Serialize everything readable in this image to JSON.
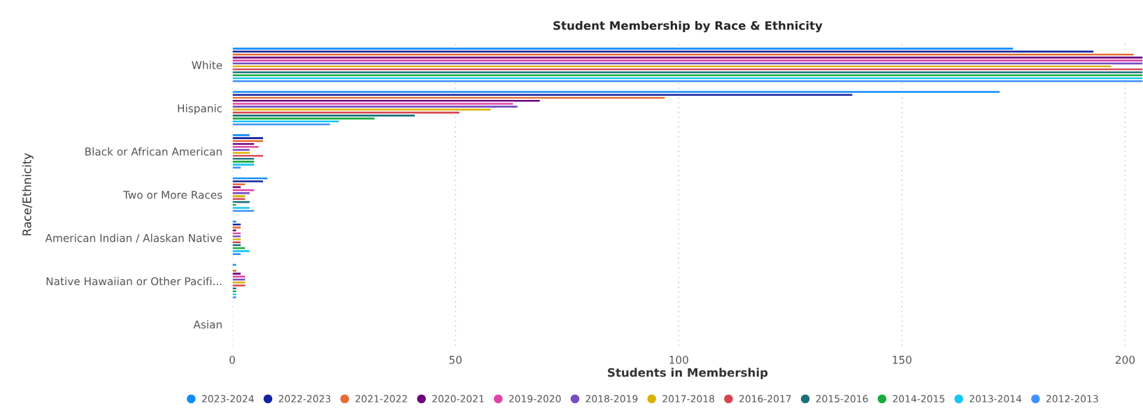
{
  "chart_data": {
    "type": "bar",
    "orientation": "horizontal",
    "title": "Student Membership by Race & Ethnicity",
    "xlabel": "Students in Membership",
    "ylabel": "Race/Ethnicity",
    "categories": [
      "White",
      "Hispanic",
      "Black or African American",
      "Two or More Races",
      "American Indian / Alaskan Native",
      "Native Hawaiian or Other Pacifi...",
      "Asian"
    ],
    "series": [
      {
        "name": "2023-2024",
        "color": "#118dff",
        "values": [
          175,
          172,
          4,
          8,
          1,
          1,
          null
        ]
      },
      {
        "name": "2022-2023",
        "color": "#12239e",
        "values": [
          193,
          139,
          7,
          7,
          2,
          null,
          null
        ]
      },
      {
        "name": "2021-2022",
        "color": "#e66c37",
        "values": [
          202,
          97,
          7,
          3,
          2,
          1,
          null
        ]
      },
      {
        "name": "2020-2021",
        "color": "#6b007b",
        "values": [
          204,
          69,
          5,
          2,
          1,
          2,
          null
        ]
      },
      {
        "name": "2019-2020",
        "color": "#e044a7",
        "values": [
          204,
          63,
          6,
          5,
          2,
          3,
          null
        ]
      },
      {
        "name": "2018-2019",
        "color": "#744ec2",
        "values": [
          204,
          64,
          4,
          4,
          2,
          3,
          null
        ]
      },
      {
        "name": "2017-2018",
        "color": "#d9b300",
        "values": [
          197,
          58,
          4,
          3,
          2,
          3,
          null
        ]
      },
      {
        "name": "2016-2017",
        "color": "#d64550",
        "values": [
          204,
          51,
          7,
          3,
          2,
          3,
          null
        ]
      },
      {
        "name": "2015-2016",
        "color": "#197278",
        "values": [
          204,
          41,
          5,
          4,
          2,
          1,
          null
        ]
      },
      {
        "name": "2014-2015",
        "color": "#1aab40",
        "values": [
          204,
          32,
          5,
          1,
          3,
          1,
          null
        ]
      },
      {
        "name": "2013-2014",
        "color": "#15c6f4",
        "values": [
          204,
          24,
          5,
          4,
          4,
          1,
          null
        ]
      },
      {
        "name": "2012-2013",
        "color": "#4092ff",
        "values": [
          204,
          22,
          2,
          5,
          2,
          1,
          null
        ]
      }
    ],
    "xlim": [
      0,
      204
    ],
    "xticks": [
      0,
      50,
      100,
      150,
      200
    ],
    "grid": "x",
    "legend": "bottom",
    "marker": "circle"
  }
}
